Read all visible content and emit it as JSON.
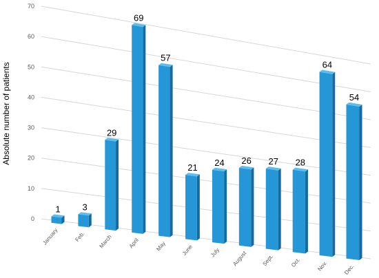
{
  "chart_data": {
    "type": "bar",
    "categories": [
      "January",
      "Feb.",
      "March",
      "April",
      "May",
      "June",
      "July",
      "August",
      "Sept.",
      "Oct.",
      "Nov.",
      "Dec."
    ],
    "values": [
      1,
      3,
      29,
      69,
      57,
      21,
      24,
      26,
      27,
      28,
      64,
      54
    ],
    "xlabel": "",
    "ylabel": "Absolute  number of patients",
    "ylim": [
      0,
      70
    ],
    "yticks": [
      "0",
      "10",
      "20",
      "30",
      "40",
      "50",
      "60",
      "70"
    ],
    "grid": true,
    "legend": "none",
    "style": "3d-perspective",
    "colors": {
      "bar_front": "#2596d6",
      "bar_side": "#176aa0",
      "bar_top": "#5cbcec",
      "grid": "#d6d6d6"
    }
  }
}
